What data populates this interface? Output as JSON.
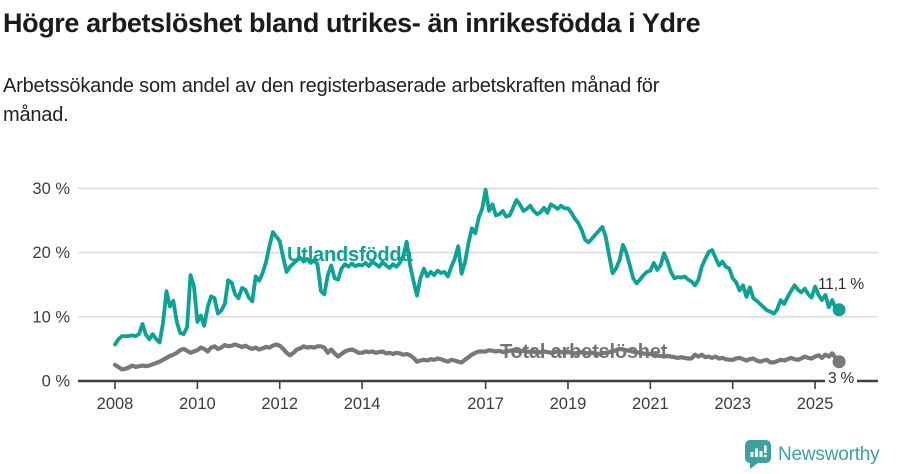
{
  "header": {
    "comment": "titles live in chart_data"
  },
  "chart_data": {
    "type": "line",
    "title": "Högre arbetslöshet bland utrikes- än inrikesfödda i Ydre",
    "subtitle": "Arbetssökande som andel av den registerbaserade arbetskraften månad för månad.",
    "x_unit": "month",
    "x_start": "2008-01",
    "x_end": "2025-08",
    "x_tick_labels": [
      "2008",
      "2010",
      "2012",
      "2014",
      "2017",
      "2019",
      "2021",
      "2023",
      "2025"
    ],
    "x_tick_values": [
      2008,
      2010,
      2012,
      2014,
      2017,
      2019,
      2021,
      2023,
      2025
    ],
    "y_tick_labels": [
      "0 %",
      "10 %",
      "20 %",
      "30 %"
    ],
    "y_tick_values": [
      0,
      10,
      20,
      30
    ],
    "ylim": [
      0,
      31
    ],
    "grid": "horizontal",
    "colors": {
      "foreign_born_line": "#0ca294",
      "total_line": "#77777c",
      "gridline": "#d8d8d8",
      "axis": "#404040",
      "axis_text": "#3c3c3c",
      "brand_teal": "#3ea19e"
    },
    "series": [
      {
        "name": "Utlandsfödda",
        "label": "Utlandsfödda",
        "color": "#0ca294",
        "end_label": "11,1 %",
        "end_value": 11.1,
        "values": [
          5.7,
          6.5,
          7.0,
          7.0,
          7.0,
          7.1,
          7.0,
          7.3,
          8.9,
          7.2,
          6.5,
          7.3,
          6.5,
          6.0,
          9.0,
          14.0,
          11.6,
          12.5,
          9.2,
          7.5,
          7.3,
          8.4,
          16.5,
          14.8,
          9.2,
          10.2,
          8.6,
          11.5,
          13.2,
          12.9,
          10.5,
          11.0,
          12.0,
          15.7,
          15.3,
          13.5,
          12.9,
          14.5,
          14.2,
          13.0,
          12.4,
          16.3,
          15.6,
          16.8,
          18.5,
          21.0,
          23.2,
          22.5,
          21.8,
          19.2,
          17.0,
          17.8,
          18.3,
          18.8,
          19.2,
          18.6,
          19.0,
          18.4,
          18.8,
          18.2,
          14.0,
          13.5,
          16.5,
          18.0,
          16.0,
          15.8,
          17.5,
          18.2,
          17.8,
          18.3,
          17.9,
          18.1,
          18.0,
          18.4,
          17.9,
          18.6,
          18.2,
          17.8,
          18.5,
          18.0,
          17.6,
          18.2,
          17.8,
          18.4,
          19.5,
          21.7,
          18.0,
          15.5,
          13.3,
          16.0,
          17.5,
          16.3,
          17.0,
          16.5,
          17.2,
          16.8,
          17.0,
          16.3,
          17.8,
          19.0,
          21.0,
          16.7,
          18.5,
          21.5,
          23.8,
          23.0,
          25.5,
          26.8,
          29.8,
          26.5,
          27.5,
          25.8,
          26.0,
          26.5,
          25.6,
          25.8,
          27.0,
          28.2,
          27.5,
          26.5,
          26.8,
          27.3,
          26.5,
          26.0,
          26.3,
          27.0,
          26.2,
          27.5,
          27.2,
          26.8,
          27.3,
          26.9,
          26.9,
          26.2,
          25.3,
          24.6,
          23.5,
          22.0,
          21.6,
          22.2,
          22.8,
          23.4,
          24.0,
          22.5,
          19.5,
          16.8,
          17.5,
          18.8,
          21.2,
          20.0,
          18.0,
          16.0,
          15.2,
          15.8,
          16.5,
          17.0,
          17.2,
          18.4,
          17.3,
          18.0,
          19.9,
          18.6,
          17.0,
          16.0,
          16.2,
          16.1,
          16.3,
          15.8,
          15.5,
          14.9,
          15.8,
          17.8,
          19.0,
          20.1,
          20.4,
          19.2,
          18.0,
          18.6,
          17.8,
          17.5,
          16.0,
          15.4,
          14.1,
          14.9,
          13.1,
          14.6,
          12.9,
          12.5,
          12.0,
          11.5,
          11.0,
          10.8,
          10.5,
          11.2,
          12.6,
          12.0,
          13.1,
          14.0,
          14.9,
          14.2,
          13.8,
          14.4,
          13.5,
          13.0,
          14.7,
          13.4,
          12.6,
          13.4,
          11.5,
          12.6,
          11.3,
          11.1
        ]
      },
      {
        "name": "Total arbetslöshet",
        "label": "Total arbetslöshet",
        "color": "#77777c",
        "end_label": "3 %",
        "end_value": 3.0,
        "values": [
          2.5,
          2.2,
          1.8,
          1.9,
          2.1,
          2.4,
          2.2,
          2.3,
          2.4,
          2.3,
          2.4,
          2.6,
          2.8,
          3.0,
          3.3,
          3.6,
          3.9,
          4.1,
          4.4,
          4.8,
          5.0,
          4.7,
          4.4,
          4.6,
          4.8,
          5.2,
          5.0,
          4.6,
          5.2,
          5.4,
          5.0,
          5.2,
          5.6,
          5.4,
          5.5,
          5.7,
          5.5,
          5.3,
          5.5,
          5.2,
          5.0,
          5.2,
          4.9,
          5.1,
          5.3,
          5.2,
          5.5,
          5.7,
          5.5,
          5.0,
          4.4,
          4.0,
          4.4,
          4.9,
          5.1,
          5.4,
          5.2,
          5.3,
          5.2,
          5.4,
          5.4,
          5.2,
          4.4,
          4.9,
          4.3,
          3.8,
          4.2,
          4.6,
          4.8,
          4.9,
          4.7,
          4.4,
          4.4,
          4.6,
          4.5,
          4.6,
          4.4,
          4.5,
          4.6,
          4.3,
          4.4,
          4.2,
          4.4,
          4.3,
          4.1,
          4.2,
          4.0,
          3.6,
          3.0,
          3.2,
          3.3,
          3.2,
          3.4,
          3.3,
          3.5,
          3.4,
          3.2,
          3.0,
          3.3,
          3.2,
          3.0,
          2.9,
          3.3,
          3.7,
          4.1,
          4.4,
          4.6,
          4.6,
          4.6,
          4.8,
          4.7,
          4.6,
          4.7,
          4.5,
          4.6,
          4.7,
          4.8,
          4.7,
          4.6,
          4.7,
          4.6,
          4.5,
          4.6,
          4.4,
          4.5,
          4.6,
          4.5,
          4.4,
          4.5,
          4.6,
          4.5,
          4.4,
          4.5,
          4.4,
          4.3,
          4.4,
          4.5,
          4.4,
          4.3,
          4.4,
          4.3,
          4.2,
          4.3,
          4.4,
          4.5,
          4.6,
          4.8,
          5.0,
          4.9,
          4.8,
          4.7,
          4.6,
          4.5,
          4.4,
          4.3,
          4.2,
          4.2,
          4.1,
          4.0,
          3.9,
          3.8,
          3.9,
          3.8,
          3.7,
          3.6,
          3.7,
          3.6,
          3.5,
          3.5,
          4.1,
          3.8,
          4.1,
          3.7,
          3.8,
          3.6,
          3.8,
          3.5,
          3.6,
          3.4,
          3.3,
          3.3,
          3.5,
          3.6,
          3.4,
          3.2,
          3.4,
          3.5,
          3.2,
          3.0,
          3.2,
          3.3,
          2.9,
          2.9,
          3.1,
          3.3,
          3.2,
          3.4,
          3.6,
          3.4,
          3.3,
          3.5,
          3.8,
          3.6,
          3.5,
          3.8,
          4.0,
          3.6,
          4.1,
          3.8,
          4.3,
          3.6,
          3.0
        ]
      }
    ]
  },
  "footer": {
    "brand": "Newsworthy"
  }
}
